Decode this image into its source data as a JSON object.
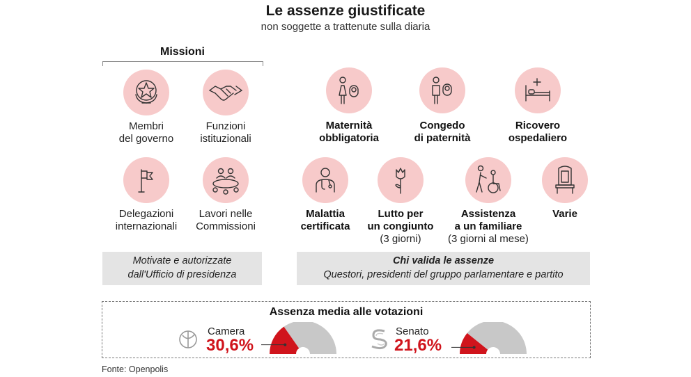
{
  "header": {
    "title": "Le assenze giustificate",
    "subtitle": "non soggette a trattenute sulla diaria"
  },
  "missioni": {
    "title": "Missioni",
    "items": [
      {
        "line1": "Membri",
        "line2": "del governo",
        "icon": "italian-emblem-icon"
      },
      {
        "line1": "Funzioni",
        "line2": "istituzionali",
        "icon": "handshake-icon"
      },
      {
        "line1": "Delegazioni",
        "line2": "internazionali",
        "icon": "flag-icon"
      },
      {
        "line1": "Lavori nelle",
        "line2": "Commissioni",
        "icon": "meeting-table-icon"
      }
    ],
    "note_line1": "Motivate e autorizzate",
    "note_line2": "dall'Ufficio di presidenza"
  },
  "other": {
    "items": [
      {
        "line1": "Maternità",
        "line2": "obbligatoria",
        "icon": "mother-baby-icon"
      },
      {
        "line1": "Congedo",
        "line2": "di paternità",
        "icon": "father-baby-icon"
      },
      {
        "line1": "Ricovero",
        "line2": "ospedaliero",
        "icon": "hospital-bed-icon"
      },
      {
        "line1": "Malattia",
        "line2": "certificata",
        "icon": "doctor-icon"
      },
      {
        "line1": "Lutto per",
        "line2": "un congiunto",
        "note": "(3 giorni)",
        "icon": "rose-icon"
      },
      {
        "line1": "Assistenza",
        "line2": "a un familiare",
        "note": "(3 giorni al mese)",
        "icon": "wheelchair-icon"
      },
      {
        "line1": "Varie",
        "icon": "throne-icon"
      }
    ],
    "validator_title": "Chi valida le assenze",
    "validator_text": "Questori, presidenti del gruppo parlamentare e partito"
  },
  "absence": {
    "title": "Assenza media alle votazioni",
    "camera": {
      "label": "Camera",
      "value_text": "30,6%",
      "value": 30.6,
      "icon": "camera-logo-icon"
    },
    "senato": {
      "label": "Senato",
      "value_text": "21,6%",
      "value": 21.6,
      "icon": "senato-logo-icon"
    },
    "colors": {
      "fill": "#d0141c",
      "rest": "#c8c8c8"
    }
  },
  "source": "Fonte: Openpolis"
}
